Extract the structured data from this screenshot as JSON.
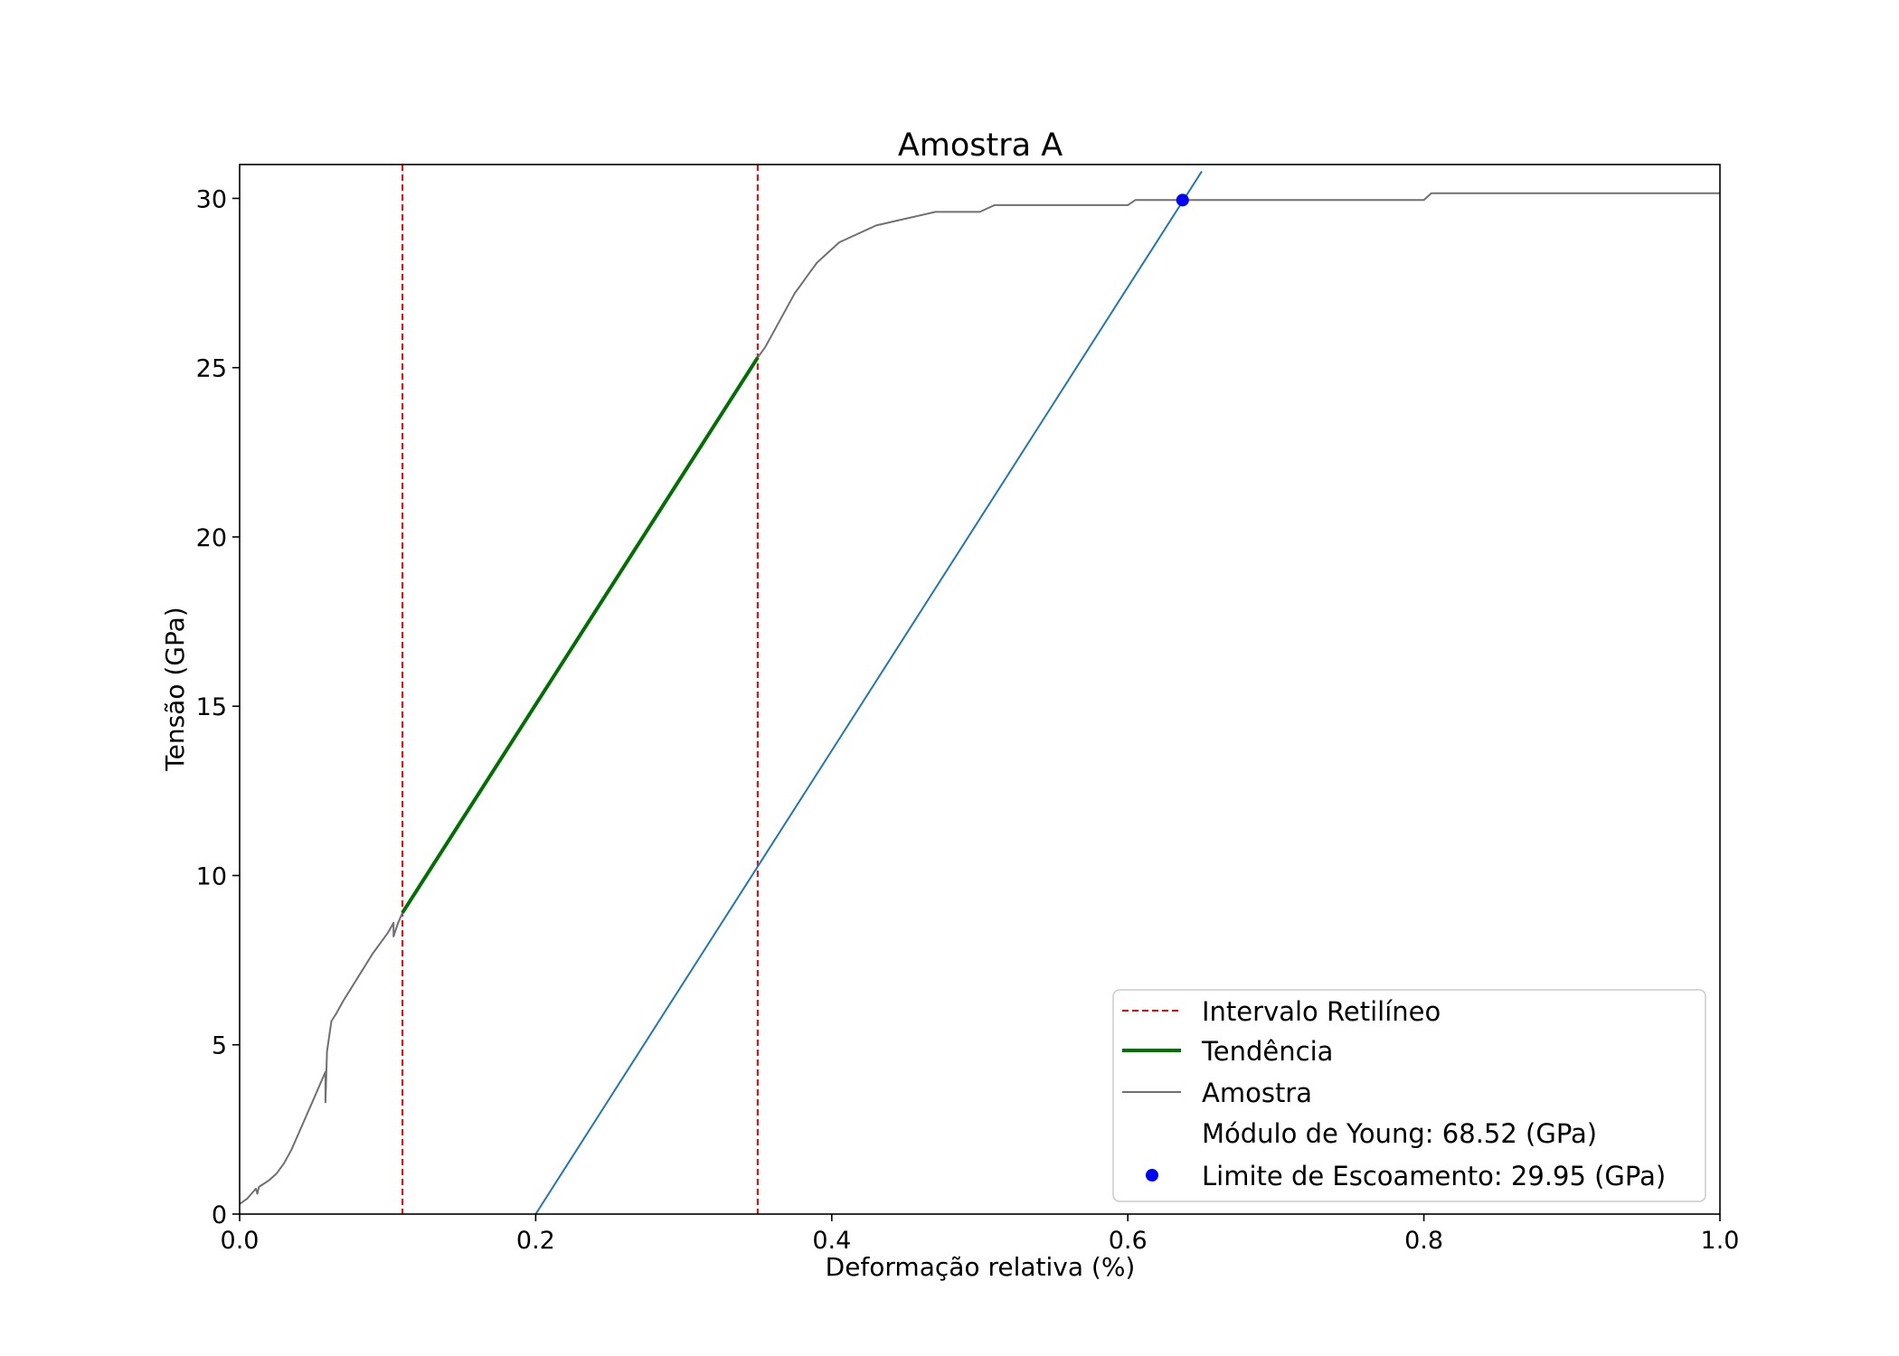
{
  "chart_data": {
    "type": "line",
    "title": "Amostra A",
    "xlabel": "Deformação relativa (%)",
    "ylabel": "Tensão (GPa)",
    "xlim": [
      0.0,
      1.0
    ],
    "ylim": [
      0,
      31
    ],
    "grid": false,
    "legend_position": "lower right",
    "x_ticks": [
      0.0,
      0.2,
      0.4,
      0.6,
      0.8,
      1.0
    ],
    "x_tick_labels": [
      "0.0",
      "0.2",
      "0.4",
      "0.6",
      "0.8",
      "1.0"
    ],
    "y_ticks": [
      0,
      5,
      10,
      15,
      20,
      25,
      30
    ],
    "y_tick_labels": [
      "0",
      "5",
      "10",
      "15",
      "20",
      "25",
      "30"
    ],
    "colors": {
      "intervalo": "#ff0000",
      "tendencia": "#007000",
      "amostra": "#707070",
      "offset_line": "#1f77b4",
      "yield_point": "#0000ff"
    },
    "intervalo_retilineo": {
      "legend": "Intervalo Retilíneo",
      "x_values": [
        0.11,
        0.35
      ]
    },
    "tendencia": {
      "legend": "Tendência",
      "points": [
        [
          0.11,
          8.9
        ],
        [
          0.35,
          25.3
        ]
      ]
    },
    "amostra": {
      "legend": "Amostra",
      "points": [
        [
          0.0,
          0.3
        ],
        [
          0.005,
          0.45
        ],
        [
          0.008,
          0.6
        ],
        [
          0.011,
          0.75
        ],
        [
          0.012,
          0.6
        ],
        [
          0.013,
          0.8
        ],
        [
          0.02,
          1.0
        ],
        [
          0.025,
          1.2
        ],
        [
          0.03,
          1.5
        ],
        [
          0.035,
          1.9
        ],
        [
          0.04,
          2.4
        ],
        [
          0.045,
          2.9
        ],
        [
          0.05,
          3.4
        ],
        [
          0.055,
          3.9
        ],
        [
          0.058,
          4.2
        ],
        [
          0.058,
          3.3
        ],
        [
          0.059,
          4.8
        ],
        [
          0.062,
          5.7
        ],
        [
          0.065,
          5.9
        ],
        [
          0.07,
          6.3
        ],
        [
          0.08,
          7.0
        ],
        [
          0.09,
          7.7
        ],
        [
          0.1,
          8.3
        ],
        [
          0.104,
          8.6
        ],
        [
          0.104,
          8.2
        ],
        [
          0.107,
          8.6
        ],
        [
          0.11,
          8.9
        ],
        [
          0.35,
          25.3
        ],
        [
          0.355,
          25.6
        ],
        [
          0.36,
          26.0
        ],
        [
          0.365,
          26.4
        ],
        [
          0.37,
          26.8
        ],
        [
          0.375,
          27.2
        ],
        [
          0.38,
          27.5
        ],
        [
          0.385,
          27.8
        ],
        [
          0.39,
          28.1
        ],
        [
          0.395,
          28.3
        ],
        [
          0.4,
          28.5
        ],
        [
          0.405,
          28.7
        ],
        [
          0.41,
          28.8
        ],
        [
          0.42,
          29.0
        ],
        [
          0.43,
          29.2
        ],
        [
          0.45,
          29.4
        ],
        [
          0.47,
          29.6
        ],
        [
          0.5,
          29.6
        ],
        [
          0.51,
          29.8
        ],
        [
          0.6,
          29.8
        ],
        [
          0.605,
          29.95
        ],
        [
          0.8,
          29.95
        ],
        [
          0.805,
          30.15
        ],
        [
          1.0,
          30.15
        ]
      ]
    },
    "offset_line": {
      "points": [
        [
          0.2,
          0.0
        ],
        [
          0.65,
          30.8
        ]
      ]
    },
    "yield_point": {
      "legend": "Limite de Escoamento: 29.95 (GPa)",
      "x": 0.637,
      "y": 29.95
    },
    "young_modulus_label": "Módulo de Young: 68.52 (GPa)"
  }
}
